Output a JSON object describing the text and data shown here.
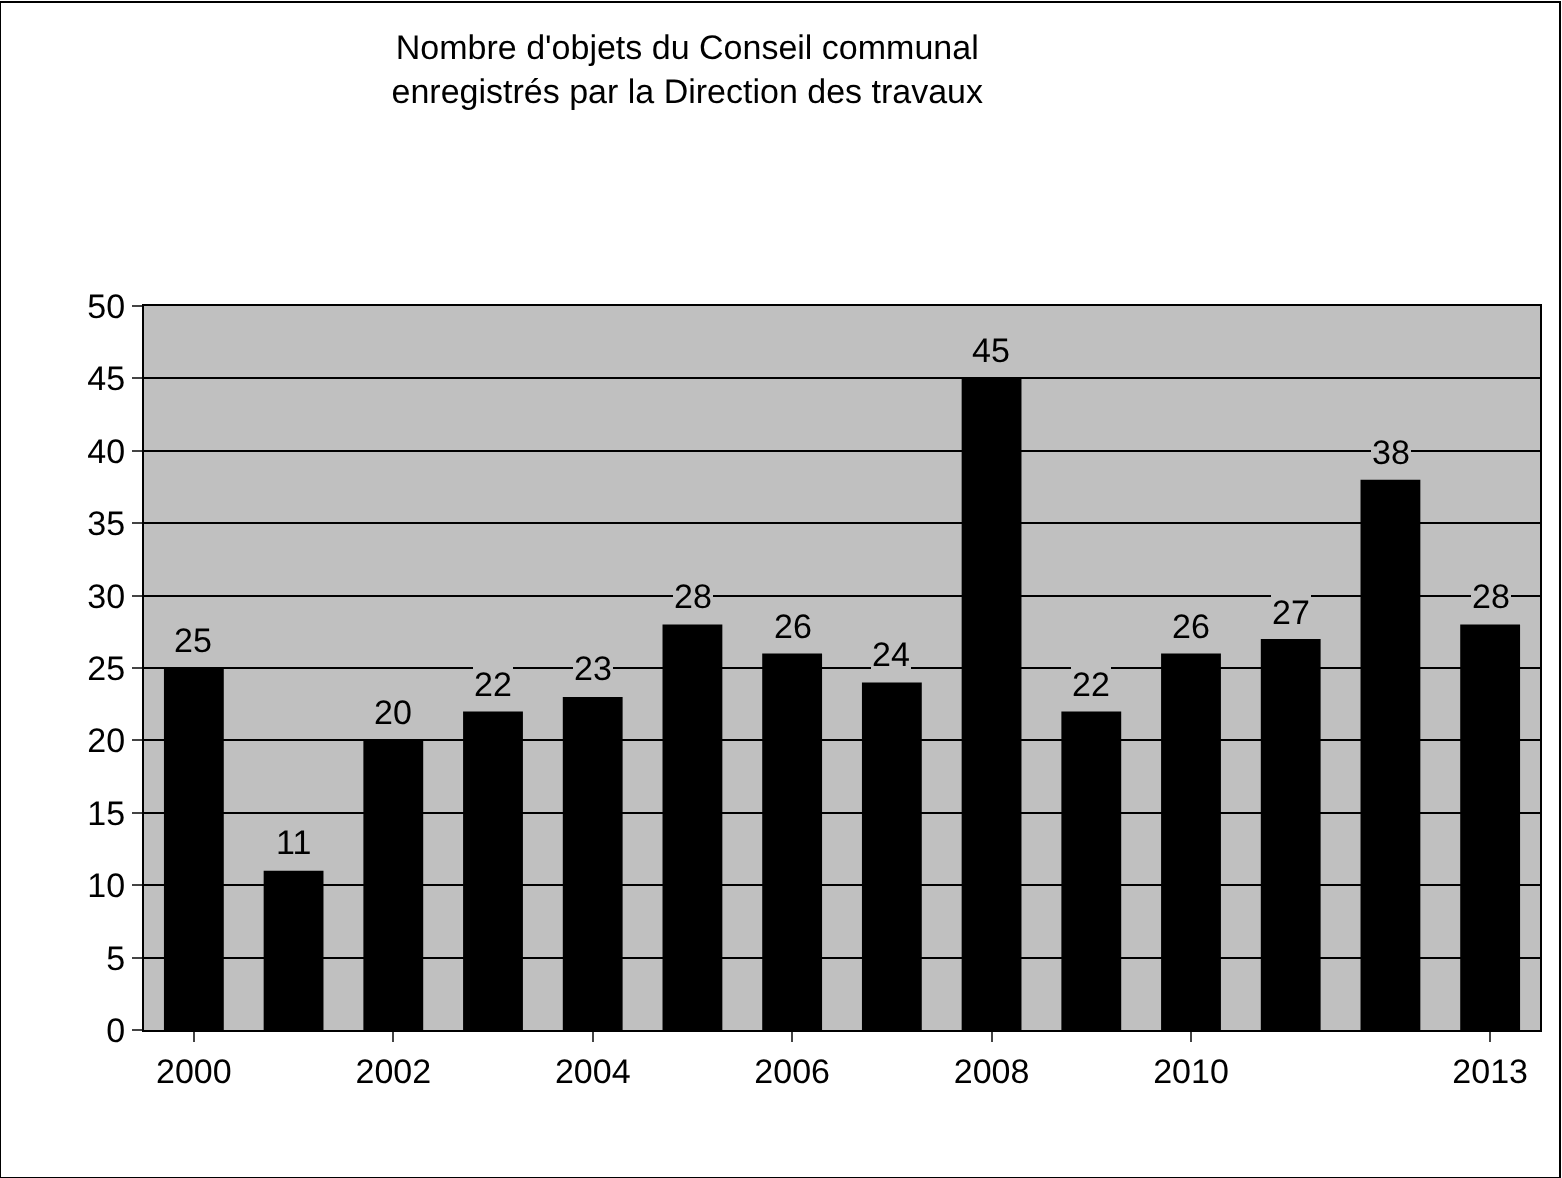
{
  "chart_data": {
    "type": "bar",
    "title": "Nombre d'objets du Conseil communal\nenregistrés par la Direction des travaux",
    "categories": [
      "2000",
      null,
      "2002",
      null,
      "2004",
      null,
      "2006",
      null,
      "2008",
      null,
      "2010",
      null,
      null,
      "2013"
    ],
    "values": [
      25,
      11,
      20,
      22,
      23,
      28,
      26,
      24,
      45,
      22,
      26,
      27,
      38,
      28
    ],
    "color": "#000000",
    "ylim": [
      0,
      50
    ],
    "yticks": [
      0,
      5,
      10,
      15,
      20,
      25,
      30,
      35,
      40,
      45,
      50
    ],
    "grid": "y",
    "data_labels": true,
    "legend": false
  }
}
